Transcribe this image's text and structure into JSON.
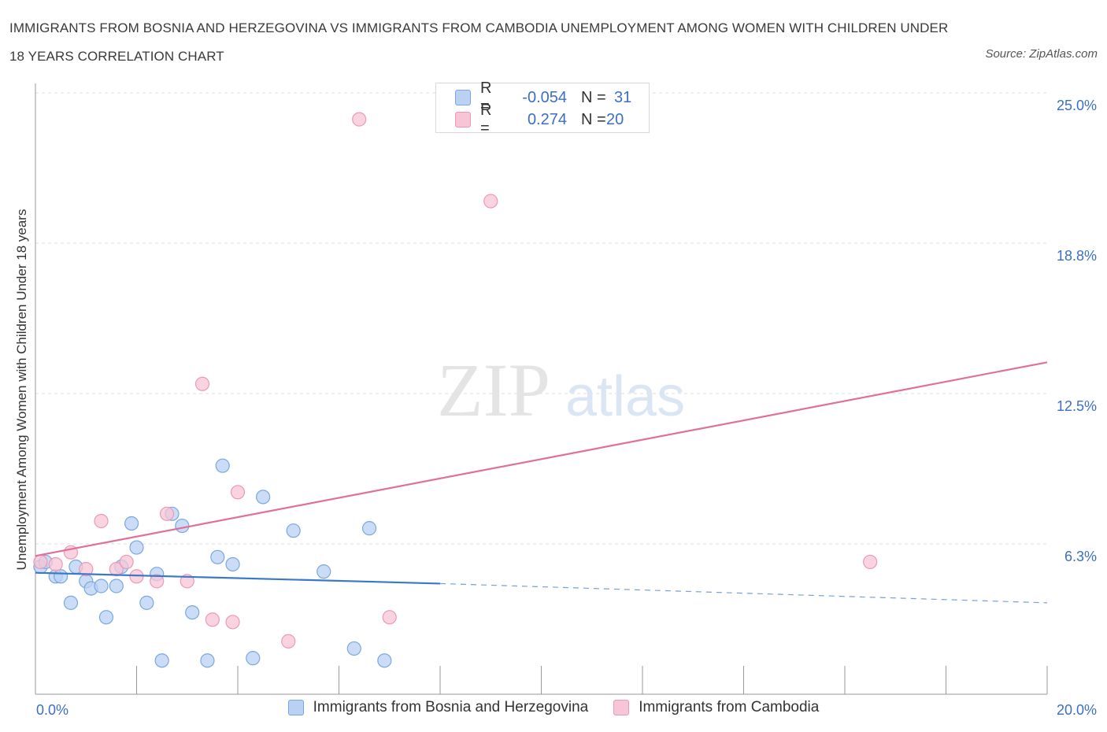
{
  "title": "IMMIGRANTS FROM BOSNIA AND HERZEGOVINA VS IMMIGRANTS FROM CAMBODIA UNEMPLOYMENT AMONG WOMEN WITH CHILDREN UNDER 18 YEARS CORRELATION CHART",
  "source": "Source: ZipAtlas.com",
  "watermark": {
    "zip": "ZIP",
    "atlas": "atlas"
  },
  "legend": {
    "rows": [
      {
        "r_label": "R =",
        "r_value": "-0.054",
        "n_label": "N =",
        "n_value": "31"
      },
      {
        "r_label": "R =",
        "r_value": "0.274",
        "n_label": "N =",
        "n_value": "20"
      }
    ]
  },
  "colors": {
    "bosnia_fill": "#b9d2f3",
    "bosnia_stroke": "#7aa7e0",
    "bosnia_line": "#3b78c9",
    "cambodia_fill": "#f7c5d5",
    "cambodia_stroke": "#e99ab5",
    "cambodia_line": "#e0709a",
    "tick_label": "#3b6fc4"
  },
  "chart_data": {
    "type": "scatter",
    "title": "IMMIGRANTS FROM BOSNIA AND HERZEGOVINA VS IMMIGRANTS FROM CAMBODIA UNEMPLOYMENT AMONG WOMEN WITH CHILDREN UNDER 18 YEARS CORRELATION CHART",
    "xlabel": "",
    "ylabel": "Unemployment Among Women with Children Under 18 years",
    "xlim": [
      0,
      20
    ],
    "ylim": [
      0,
      25
    ],
    "x_tick_labels": [
      {
        "value": 0,
        "label": "0.0%"
      },
      {
        "value": 20,
        "label": "20.0%"
      }
    ],
    "y_tick_labels": [
      {
        "value": 6.25,
        "label": "6.3%"
      },
      {
        "value": 12.5,
        "label": "12.5%"
      },
      {
        "value": 18.75,
        "label": "18.8%"
      },
      {
        "value": 25,
        "label": "25.0%"
      }
    ],
    "grid": true,
    "legend_position": "bottom",
    "series": [
      {
        "name": "Immigrants from Bosnia and Herzegovina",
        "points": [
          [
            0.1,
            5.3
          ],
          [
            0.2,
            5.5
          ],
          [
            0.4,
            4.9
          ],
          [
            0.5,
            4.9
          ],
          [
            0.7,
            3.8
          ],
          [
            0.8,
            5.3
          ],
          [
            1.0,
            4.7
          ],
          [
            1.1,
            4.4
          ],
          [
            1.3,
            4.5
          ],
          [
            1.4,
            3.2
          ],
          [
            1.6,
            4.5
          ],
          [
            1.7,
            5.3
          ],
          [
            1.9,
            7.1
          ],
          [
            2.0,
            6.1
          ],
          [
            2.2,
            3.8
          ],
          [
            2.4,
            5.0
          ],
          [
            2.5,
            1.4
          ],
          [
            2.7,
            7.5
          ],
          [
            2.9,
            7.0
          ],
          [
            3.1,
            3.4
          ],
          [
            3.4,
            1.4
          ],
          [
            3.6,
            5.7
          ],
          [
            3.7,
            9.5
          ],
          [
            3.9,
            5.4
          ],
          [
            4.3,
            1.5
          ],
          [
            4.5,
            8.2
          ],
          [
            5.1,
            6.8
          ],
          [
            5.7,
            5.1
          ],
          [
            6.3,
            1.9
          ],
          [
            6.6,
            6.9
          ],
          [
            6.9,
            1.4
          ]
        ],
        "trend": {
          "x": [
            0,
            8
          ],
          "y": [
            5.05,
            4.6
          ],
          "dashed_to": [
            20,
            3.8
          ]
        }
      },
      {
        "name": "Immigrants from Cambodia",
        "points": [
          [
            0.1,
            5.5
          ],
          [
            0.4,
            5.4
          ],
          [
            0.7,
            5.9
          ],
          [
            1.0,
            5.2
          ],
          [
            1.3,
            7.2
          ],
          [
            1.6,
            5.2
          ],
          [
            1.8,
            5.5
          ],
          [
            2.0,
            4.9
          ],
          [
            2.4,
            4.7
          ],
          [
            2.6,
            7.5
          ],
          [
            3.0,
            4.7
          ],
          [
            3.3,
            12.9
          ],
          [
            3.5,
            3.1
          ],
          [
            3.9,
            3.0
          ],
          [
            4.0,
            8.4
          ],
          [
            5.0,
            2.2
          ],
          [
            6.4,
            23.9
          ],
          [
            7.0,
            3.2
          ],
          [
            9.0,
            20.5
          ],
          [
            16.5,
            5.5
          ]
        ],
        "trend": {
          "x": [
            0,
            20
          ],
          "y": [
            5.75,
            13.8
          ]
        }
      }
    ]
  },
  "bottom_legend": [
    {
      "label": "Immigrants from Bosnia and Herzegovina"
    },
    {
      "label": "Immigrants from Cambodia"
    }
  ]
}
